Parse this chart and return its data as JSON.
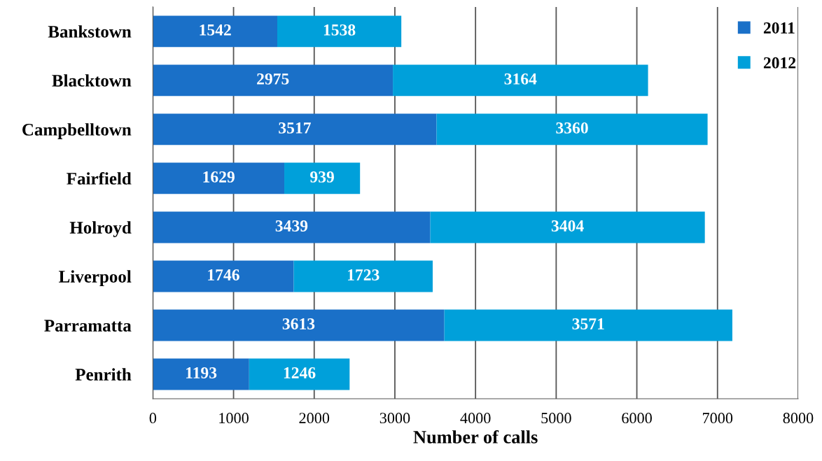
{
  "chart_data": {
    "type": "bar",
    "orientation": "horizontal",
    "stacked": true,
    "xlabel": "Number of calls",
    "categories": [
      "Bankstown",
      "Blacktown",
      "Campbelltown",
      "Fairfield",
      "Holroyd",
      "Liverpool",
      "Parramatta",
      "Penrith"
    ],
    "series": [
      {
        "name": "2011",
        "color": "#1a70c8",
        "values": [
          1542,
          2975,
          3517,
          1629,
          3439,
          1746,
          3613,
          1193
        ]
      },
      {
        "name": "2012",
        "color": "#00a0da",
        "values": [
          1538,
          3164,
          3360,
          939,
          3404,
          1723,
          3571,
          1246
        ]
      }
    ],
    "xlim": [
      0,
      8000
    ],
    "xticks": [
      0,
      1000,
      2000,
      3000,
      4000,
      5000,
      6000,
      7000,
      8000
    ],
    "grid": "x",
    "legend": "top right",
    "data_labels": true
  }
}
